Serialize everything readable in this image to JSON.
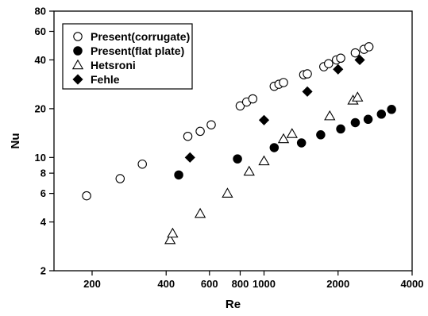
{
  "chart_data": {
    "type": "scatter",
    "title": "",
    "xlabel": "Re",
    "ylabel": "Nu",
    "xscale": "log",
    "yscale": "log",
    "xlim": [
      140,
      4000
    ],
    "ylim": [
      2,
      80
    ],
    "grid": false,
    "legend_position": "top-left",
    "x_ticks": [
      200,
      400,
      600,
      800,
      1000,
      2000,
      4000
    ],
    "x_tick_labels": [
      "200",
      "400",
      "600",
      "800",
      "1000",
      "2000",
      "4000"
    ],
    "y_ticks": [
      2,
      4,
      6,
      8,
      10,
      20,
      40,
      60,
      80
    ],
    "y_tick_labels": [
      "2",
      "4",
      "6",
      "8",
      "10",
      "20",
      "40",
      "60",
      "80"
    ],
    "series": [
      {
        "name": "Present(corrugate)",
        "marker": "circle-open",
        "color": "#000000",
        "x": [
          190,
          260,
          320,
          490,
          550,
          610,
          800,
          850,
          900,
          1100,
          1150,
          1200,
          1450,
          1500,
          1750,
          1830,
          1970,
          2050,
          2350,
          2550,
          2670
        ],
        "y": [
          5.8,
          7.4,
          9.1,
          13.5,
          14.5,
          15.9,
          20.8,
          22,
          23,
          27.5,
          28.3,
          29,
          32.4,
          32.8,
          36.3,
          37.9,
          40,
          41,
          44.2,
          46.5,
          48.2
        ]
      },
      {
        "name": "Present(flat plate)",
        "marker": "circle-filled",
        "color": "#000000",
        "x": [
          450,
          780,
          1100,
          1420,
          1700,
          2050,
          2350,
          2650,
          3000,
          3300
        ],
        "y": [
          7.8,
          9.8,
          11.5,
          12.3,
          13.8,
          15,
          16.4,
          17.2,
          18.5,
          19.8
        ]
      },
      {
        "name": "Hetsroni",
        "marker": "triangle-open",
        "color": "#000000",
        "x": [
          415,
          425,
          550,
          710,
          870,
          1000,
          1200,
          1300,
          1850,
          2300,
          2400
        ],
        "y": [
          3.1,
          3.4,
          4.5,
          6,
          8.2,
          9.5,
          13,
          14,
          18,
          22.5,
          23.5
        ]
      },
      {
        "name": "Fehle",
        "marker": "diamond-filled",
        "color": "#000000",
        "x": [
          500,
          1000,
          1500,
          2000,
          2450
        ],
        "y": [
          10,
          17,
          25.5,
          35,
          40
        ]
      }
    ]
  }
}
